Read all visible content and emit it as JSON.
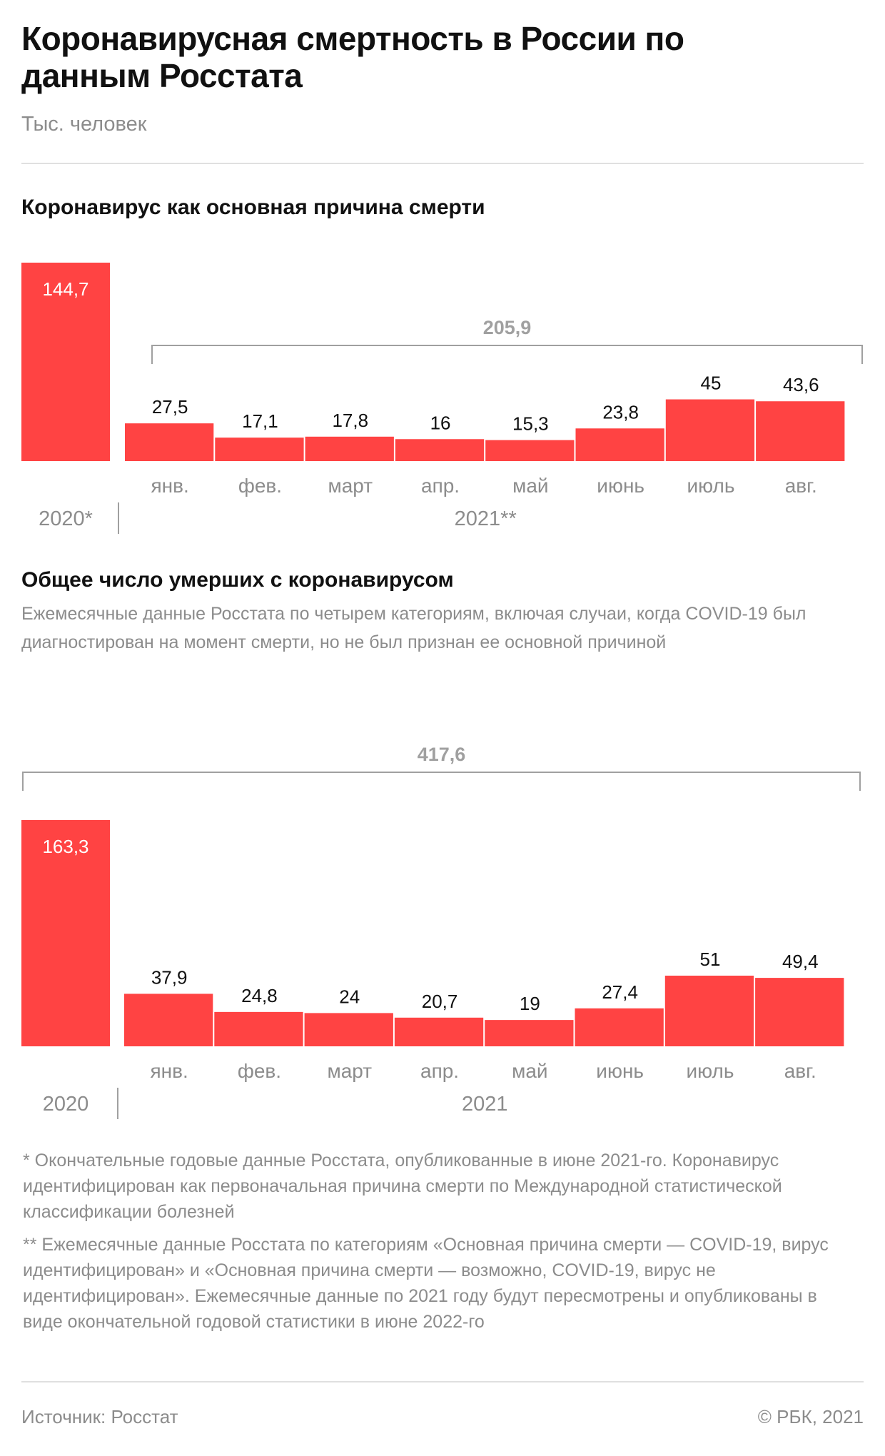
{
  "header": {
    "title": "Коронавирусная смертность в России по данным Росстата",
    "subtitle": "Тыс. человек"
  },
  "section1": {
    "title": "Коронавирус как основная причина смерти"
  },
  "section2": {
    "title": "Общее число умерших с коронавирусом",
    "description": "Ежемесячные данные Росстата по четырем категориям, включая случаи, когда COVID-19 был диагностирован на момент смерти, но не был признан ее основной причиной"
  },
  "footnotes": {
    "note1": "* Окончательные годовые данные Росстата, опубликованные в июне 2021-го. Коронавирус идентифицирован как первоначальная причина смерти по Международной статистической классификации болезней",
    "note2": "** Ежемесячные данные Росстата по категориям «Основная причина смерти — COVID-19, вирус идентифицирован» и «Основная причина смерти — возможно, COVID-19, вирус не идентифицирован». Ежемесячные данные по 2021 году будут пересмотрены и опубликованы в виде окончательной годовой статистики в июне 2022-го"
  },
  "footer": {
    "source": "Источник: Росстат",
    "copyright": "© РБК, 2021"
  },
  "colors": {
    "bar": "#ff4343",
    "text": "#111111",
    "muted": "#8c8c8c",
    "bracket": "#a0a0a0"
  },
  "chart_data": [
    {
      "type": "bar",
      "title": "Коронавирус как основная причина смерти",
      "year_bar": {
        "label": "2020*",
        "value": 144.7,
        "value_label": "144,7"
      },
      "year_2021_label": "2021**",
      "categories": [
        "янв.",
        "фев.",
        "март",
        "апр.",
        "май",
        "июнь",
        "июль",
        "авг."
      ],
      "values": [
        27.5,
        17.1,
        17.8,
        16,
        15.3,
        23.8,
        45,
        43.6
      ],
      "value_labels": [
        "27,5",
        "17,1",
        "17,8",
        "16",
        "15,3",
        "23,8",
        "45",
        "43,6"
      ],
      "total": {
        "value": 205.9,
        "label": "205,9",
        "spans": "2021"
      },
      "ylim": [
        0,
        144.7
      ]
    },
    {
      "type": "bar",
      "title": "Общее число умерших с коронавирусом",
      "year_bar": {
        "label": "2020",
        "value": 163.3,
        "value_label": "163,3"
      },
      "year_2021_label": "2021",
      "categories": [
        "янв.",
        "фев.",
        "март",
        "апр.",
        "май",
        "июнь",
        "июль",
        "авг."
      ],
      "values": [
        37.9,
        24.8,
        24,
        20.7,
        19,
        27.4,
        51,
        49.4
      ],
      "value_labels": [
        "37,9",
        "24,8",
        "24",
        "20,7",
        "19",
        "27,4",
        "51",
        "49,4"
      ],
      "total": {
        "value": 417.6,
        "label": "417,6",
        "spans": "2020-2021"
      },
      "ylim": [
        0,
        163.3
      ]
    }
  ]
}
